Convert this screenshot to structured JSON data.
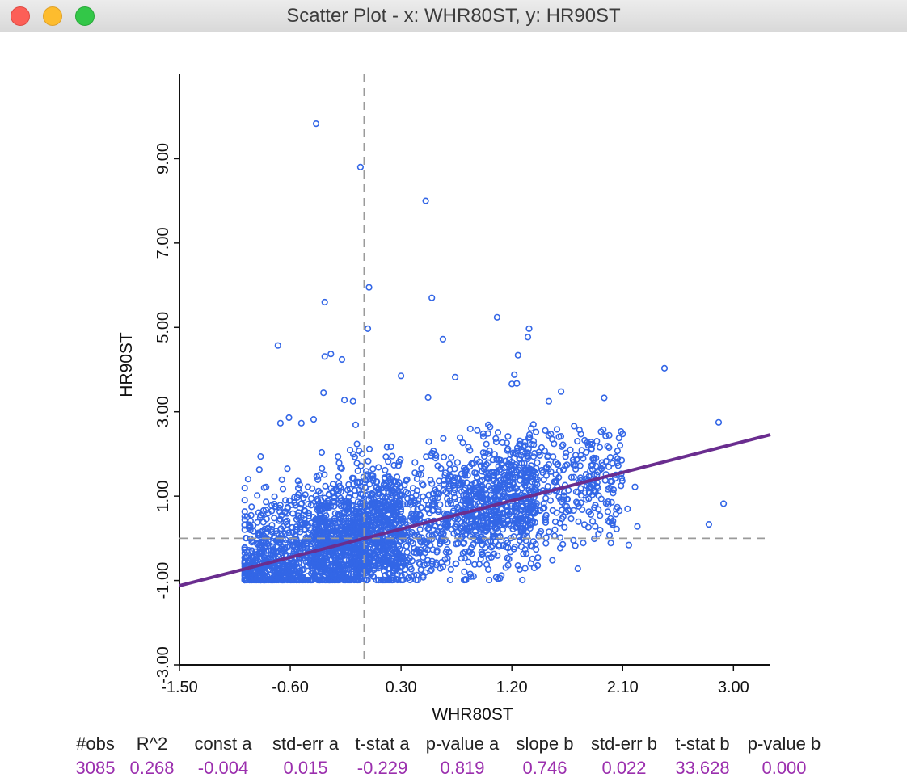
{
  "window": {
    "title": "Scatter Plot - x: WHR80ST, y: HR90ST"
  },
  "colors": {
    "points": "#3366e6",
    "fit_line": "#6a2d8f",
    "reference": "#9a9a9a",
    "stat_values": "#9b2fae"
  },
  "chart_data": {
    "type": "scatter",
    "xlabel": "WHR80ST",
    "ylabel": "HR90ST",
    "xlim": [
      -1.5,
      3.3
    ],
    "ylim": [
      -3.0,
      11.0
    ],
    "xticks": [
      "-1.50",
      "-0.60",
      "0.30",
      "1.20",
      "2.10",
      "3.00"
    ],
    "yticks": [
      "-3.00",
      "-1.00",
      "1.00",
      "3.00",
      "5.00",
      "7.00",
      "9.00"
    ],
    "reference_lines": {
      "x": 0,
      "y": 0
    },
    "fit_line": {
      "intercept": -0.004,
      "slope": 0.746
    },
    "n_points": 3085,
    "outliers": [
      [
        -0.39,
        9.83
      ],
      [
        -0.03,
        8.8
      ],
      [
        0.5,
        8.0
      ],
      [
        0.04,
        5.95
      ],
      [
        0.55,
        5.7
      ],
      [
        -0.32,
        5.6
      ],
      [
        0.03,
        4.97
      ],
      [
        0.64,
        4.72
      ],
      [
        1.08,
        5.24
      ],
      [
        1.34,
        4.97
      ],
      [
        1.33,
        4.77
      ],
      [
        -0.7,
        4.57
      ],
      [
        -0.27,
        4.37
      ],
      [
        -0.32,
        4.31
      ],
      [
        -0.18,
        4.24
      ],
      [
        2.44,
        4.03
      ],
      [
        0.3,
        3.85
      ],
      [
        0.74,
        3.82
      ],
      [
        1.22,
        3.88
      ],
      [
        1.24,
        3.67
      ],
      [
        1.25,
        4.34
      ],
      [
        1.2,
        3.66
      ],
      [
        -0.33,
        3.45
      ],
      [
        -0.16,
        3.28
      ],
      [
        -0.09,
        3.25
      ],
      [
        1.6,
        3.48
      ],
      [
        1.95,
        3.33
      ],
      [
        2.88,
        2.75
      ],
      [
        2.8,
        0.33
      ],
      [
        2.92,
        0.82
      ],
      [
        2.22,
        0.28
      ],
      [
        2.14,
        0.7
      ],
      [
        2.2,
        1.22
      ],
      [
        2.15,
        -0.16
      ],
      [
        -0.68,
        2.73
      ],
      [
        -0.61,
        2.86
      ],
      [
        -0.41,
        2.82
      ],
      [
        -0.51,
        2.73
      ],
      [
        0.52,
        3.34
      ],
      [
        1.5,
        3.25
      ]
    ]
  },
  "stats": {
    "headers": [
      "#obs",
      "R^2",
      "const a",
      "std-err a",
      "t-stat a",
      "p-value a",
      "slope b",
      "std-err b",
      "t-stat b",
      "p-value b"
    ],
    "values": [
      "3085",
      "0.268",
      "-0.004",
      "0.015",
      "-0.229",
      "0.819",
      "0.746",
      "0.022",
      "33.628",
      "0.000"
    ]
  }
}
